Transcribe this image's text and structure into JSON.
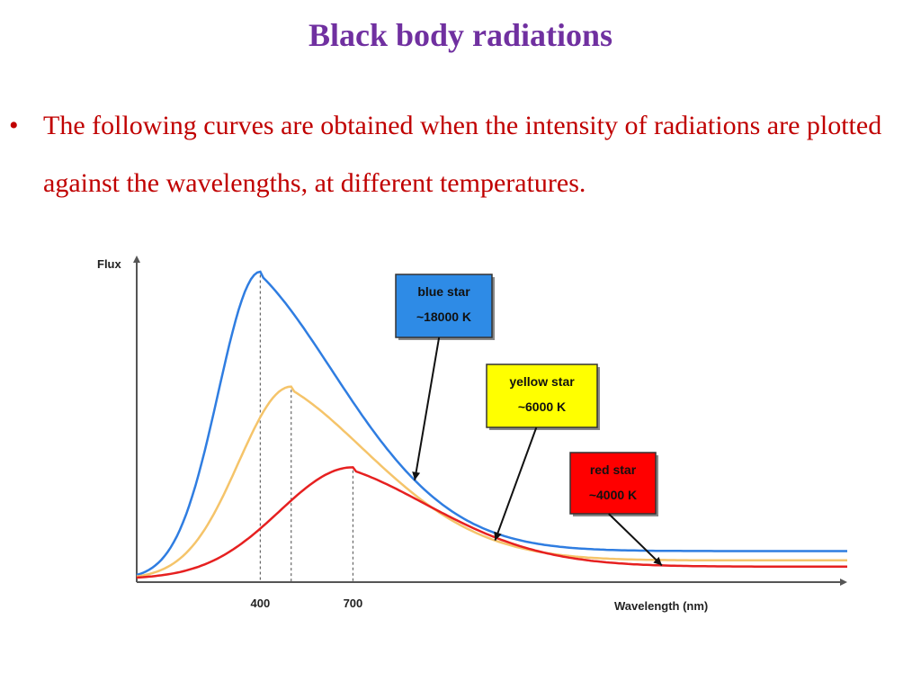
{
  "slide": {
    "title": "Black body radiations",
    "bullet_text": "The following curves are obtained when the intensity of radiations are plotted against the wavelengths, at different temperatures.",
    "bullet_symbol": "•"
  },
  "chart_data": {
    "type": "line",
    "ylabel": "Flux",
    "xlabel": "Wavelength (nm)",
    "x_ticks": [
      400,
      700
    ],
    "x_range": [
      0,
      2300
    ],
    "y_range": [
      0,
      1.0
    ],
    "grid": false,
    "series": [
      {
        "name": "blue star",
        "temperature_label": "~18000 K",
        "color": "#2f7de1",
        "box_color": "#2e8be6",
        "peak_x": 400,
        "peak_y": 0.99,
        "end_y": 0.1
      },
      {
        "name": "yellow star",
        "temperature_label": "~6000 K",
        "color": "#f5c46a",
        "box_color": "#ffff00",
        "peak_x": 500,
        "peak_y": 0.62,
        "end_y": 0.07
      },
      {
        "name": "red star",
        "temperature_label": "~4000 K",
        "color": "#e62020",
        "box_color": "#ff0000",
        "peak_x": 700,
        "peak_y": 0.36,
        "end_y": 0.05
      }
    ]
  }
}
